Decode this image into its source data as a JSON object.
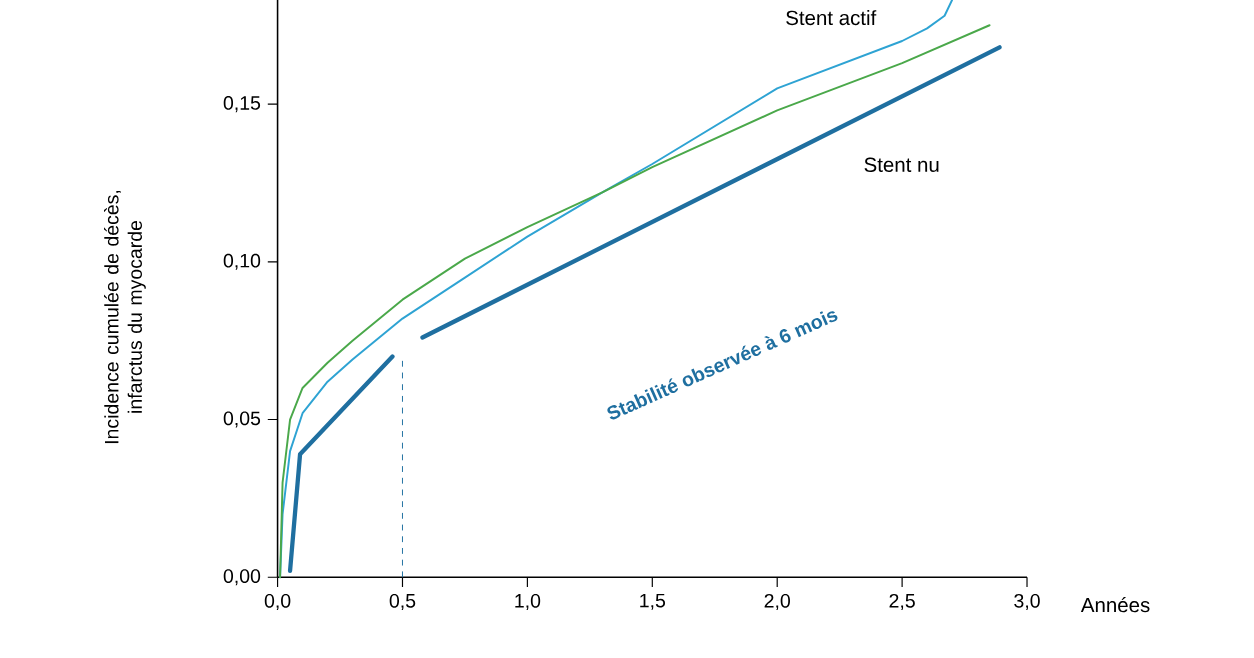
{
  "chart_data": {
    "type": "line",
    "ylabel": "Incidence cumulée de décès, infarctus du myocarde",
    "xlabel": "Années",
    "xlim": [
      0,
      3.0
    ],
    "ylim": [
      0,
      0.183
    ],
    "xticks": [
      {
        "value": 0,
        "label": "0,0"
      },
      {
        "value": 0.5,
        "label": "0,5"
      },
      {
        "value": 1.0,
        "label": "1,0"
      },
      {
        "value": 1.5,
        "label": "1,5"
      },
      {
        "value": 2.0,
        "label": "2,0"
      },
      {
        "value": 2.5,
        "label": "2,5"
      },
      {
        "value": 3.0,
        "label": "3,0"
      }
    ],
    "yticks": [
      {
        "value": 0,
        "label": "0,00"
      },
      {
        "value": 0.05,
        "label": "0,05"
      },
      {
        "value": 0.1,
        "label": "0,10"
      },
      {
        "value": 0.15,
        "label": "0,15"
      }
    ],
    "grid": false,
    "legend": false,
    "marker": "none",
    "line_style": "solid",
    "series": [
      {
        "name": "Stent actif",
        "color": "#2ea3d3",
        "x": [
          0.01,
          0.02,
          0.05,
          0.1,
          0.2,
          0.3,
          0.5,
          0.75,
          1.0,
          1.3,
          1.5,
          2.0,
          2.5,
          2.6,
          2.67,
          2.7
        ],
        "values": [
          0.0,
          0.02,
          0.04,
          0.052,
          0.062,
          0.069,
          0.082,
          0.095,
          0.108,
          0.122,
          0.131,
          0.155,
          0.17,
          0.174,
          0.178,
          0.183
        ]
      },
      {
        "name": "Stent nu",
        "color": "#1f6fa0",
        "x": [
          0.05,
          0.09,
          0.46,
          0.5,
          0.58,
          2.89
        ],
        "values": [
          0.002,
          0.039,
          0.07,
          null,
          0.076,
          0.168
        ]
      },
      {
        "color": "#4aa84a",
        "x": [
          0.01,
          0.02,
          0.05,
          0.1,
          0.2,
          0.3,
          0.5,
          0.75,
          1.0,
          1.3,
          1.5,
          2.0,
          2.5,
          2.85
        ],
        "values": [
          0.0,
          0.03,
          0.05,
          0.06,
          0.068,
          0.075,
          0.088,
          0.101,
          0.111,
          0.122,
          0.13,
          0.148,
          0.163,
          0.175
        ]
      }
    ],
    "ref_lines": [
      {
        "axis": "x",
        "value": 0.5,
        "color": "#1f6fa0",
        "line_style": "dashed"
      }
    ],
    "annotations": [
      "Stabilité observée à 6 mois"
    ]
  }
}
